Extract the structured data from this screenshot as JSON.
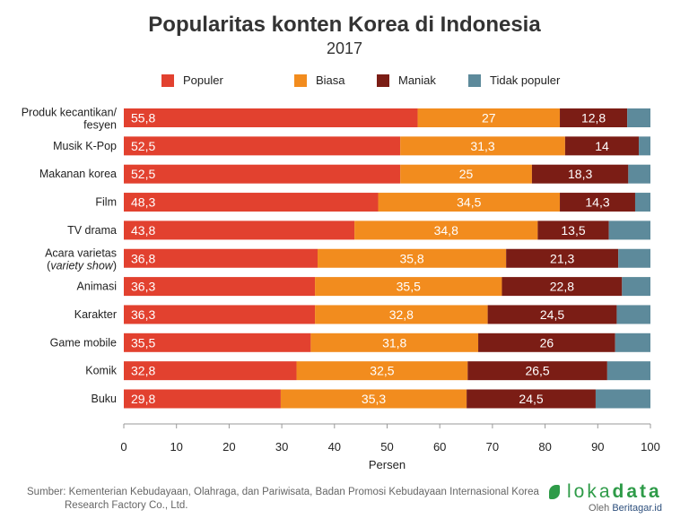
{
  "chart_data": {
    "type": "bar",
    "orientation": "horizontal",
    "stacked": true,
    "title": "Popularitas konten Korea di Indonesia",
    "subtitle": "2017",
    "xlabel": "Persen",
    "xlim": [
      0,
      100
    ],
    "xticks": [
      0,
      10,
      20,
      30,
      40,
      50,
      60,
      70,
      80,
      90,
      100
    ],
    "legend_position": "top",
    "categories": [
      [
        "Produk kecantikan/",
        "fesyen"
      ],
      [
        "Musik K-Pop"
      ],
      [
        "Makanan korea"
      ],
      [
        "Film"
      ],
      [
        "TV drama"
      ],
      [
        "Acara varietas",
        "(variety show)"
      ],
      [
        "Animasi"
      ],
      [
        "Karakter"
      ],
      [
        "Game mobile"
      ],
      [
        "Komik"
      ],
      [
        "Buku"
      ]
    ],
    "series": [
      {
        "name": "Populer",
        "color": "#e2412f",
        "values": [
          55.8,
          52.5,
          52.5,
          48.3,
          43.8,
          36.8,
          36.3,
          36.3,
          35.5,
          32.8,
          29.8
        ],
        "labels": [
          "55,8",
          "52,5",
          "52,5",
          "48,3",
          "43,8",
          "36,8",
          "36,3",
          "36,3",
          "35,5",
          "32,8",
          "29,8"
        ]
      },
      {
        "name": "Biasa",
        "color": "#f28c1e",
        "values": [
          27,
          31.3,
          25,
          34.5,
          34.8,
          35.8,
          35.5,
          32.8,
          31.8,
          32.5,
          35.3
        ],
        "labels": [
          "27",
          "31,3",
          "25",
          "34,5",
          "34,8",
          "35,8",
          "35,5",
          "32,8",
          "31,8",
          "32,5",
          "35,3"
        ]
      },
      {
        "name": "Maniak",
        "color": "#7b1d15",
        "values": [
          12.8,
          14,
          18.3,
          14.3,
          13.5,
          21.3,
          22.8,
          24.5,
          26,
          26.5,
          24.5
        ],
        "labels": [
          "12,8",
          "14",
          "18,3",
          "14,3",
          "13,5",
          "21,3",
          "22,8",
          "24,5",
          "26",
          "26,5",
          "24,5"
        ]
      },
      {
        "name": "Tidak populer",
        "color": "#5d8a9b",
        "values": [
          4.4,
          2.2,
          4.2,
          2.9,
          7.9,
          6.1,
          5.4,
          6.4,
          6.7,
          8.2,
          10.4
        ]
      }
    ]
  },
  "footer": {
    "source_line1": "Sumber: Kementerian Kebudayaan, Olahraga, dan Pariwisata, Badan Promosi Kebudayaan Internasional Korea",
    "source_line2": "Research Factory Co., Ltd.",
    "logo_a": "loka",
    "logo_b": "data",
    "by": "Oleh ",
    "by_brand": "Beritagar.id"
  }
}
